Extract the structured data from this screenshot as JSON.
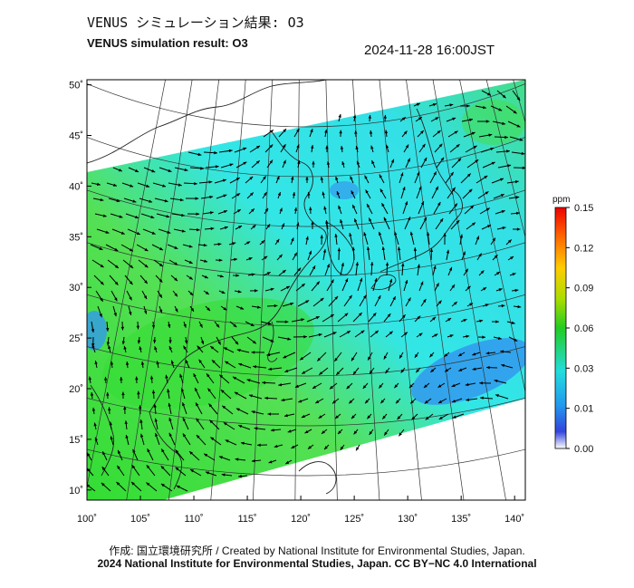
{
  "header": {
    "title_jp": "VENUS シミュレーション結果: O3",
    "title_en": "VENUS simulation result: O3",
    "timestamp": "2024-11-28 16:00JST"
  },
  "map": {
    "lat_labels": [
      "50˚",
      "45˚",
      "40˚",
      "35˚",
      "30˚",
      "25˚",
      "20˚",
      "15˚",
      "10˚"
    ],
    "lon_labels": [
      "100˚",
      "105˚",
      "110˚",
      "115˚",
      "120˚",
      "125˚",
      "130˚",
      "135˚",
      "140˚"
    ],
    "lat_values": [
      50,
      45,
      40,
      35,
      30,
      25,
      20,
      15,
      10
    ],
    "lon_values": [
      100,
      105,
      110,
      115,
      120,
      125,
      130,
      135,
      140
    ],
    "lat_range": [
      9,
      50.5
    ],
    "lon_range": [
      100,
      141
    ],
    "field_colors": {
      "cyan": "#33e6e6",
      "green": "#33dd33",
      "blue": "#3399ee",
      "light_green": "#55ee66"
    }
  },
  "colorbar": {
    "unit": "ppm",
    "tick_labels": [
      "0.15",
      "0.12",
      "0.09",
      "0.06",
      "0.03",
      "0.01",
      "0.00"
    ],
    "gradient": [
      "#ee0000",
      "#ff6600",
      "#ffcc00",
      "#aadd00",
      "#22cc22",
      "#22dddd",
      "#2299ee",
      "#3344dd",
      "#ffffff"
    ]
  },
  "footer": {
    "credit": "作成: 国立環境研究所 / Created by National Institute for Environmental Studies, Japan.",
    "copyright": "2024 National Institute for Environmental Studies, Japan. CC BY−NC 4.0 International"
  }
}
